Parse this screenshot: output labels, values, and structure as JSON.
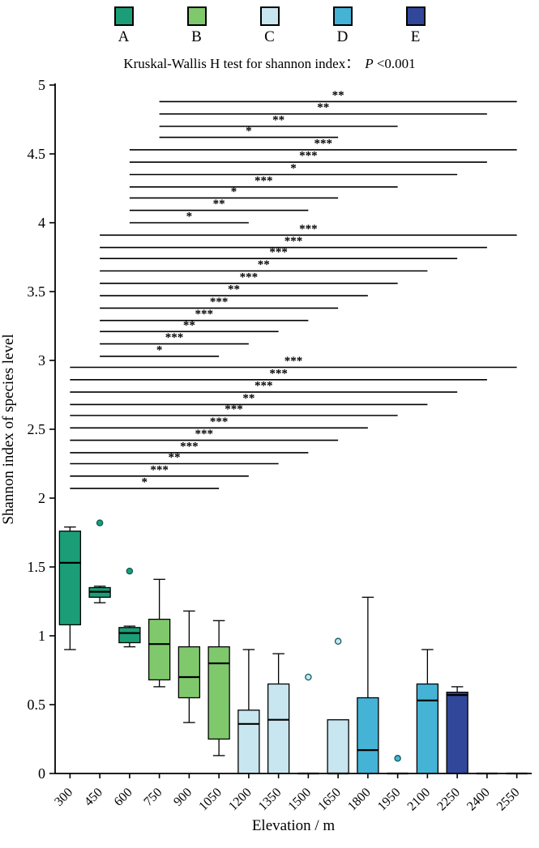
{
  "title": {
    "prefix": "Kruskal-Wallis H test for shannon index：",
    "italic": "P",
    "suffix": " <0.001"
  },
  "legend": {
    "position": "top",
    "items": [
      {
        "label": "A",
        "color": "#1b9e77"
      },
      {
        "label": "B",
        "color": "#7fc96c"
      },
      {
        "label": "C",
        "color": "#c7e6f0"
      },
      {
        "label": "D",
        "color": "#44b3d6"
      },
      {
        "label": "E",
        "color": "#31479a"
      }
    ]
  },
  "chart_data": {
    "type": "box",
    "title": "Kruskal-Wallis H test for shannon index： P <0.001",
    "xlabel": "Elevation / m",
    "ylabel": "Shannon index of species level",
    "ylim": [
      0,
      5
    ],
    "yticks": [
      "0",
      "0.5",
      "1",
      "1.5",
      "2",
      "2.5",
      "3",
      "3.5",
      "4",
      "4.5",
      "5"
    ],
    "grid": false,
    "categories": [
      "300",
      "450",
      "600",
      "750",
      "900",
      "1050",
      "1200",
      "1350",
      "1500",
      "1650",
      "1800",
      "1950",
      "2100",
      "2250",
      "2400",
      "2550"
    ],
    "boxes": [
      {
        "category": "300",
        "group": "A",
        "whisker_low": 0.9,
        "q1": 1.08,
        "median": 1.53,
        "q3": 1.76,
        "whisker_high": 1.79,
        "outliers": []
      },
      {
        "category": "450",
        "group": "A",
        "whisker_low": 1.24,
        "q1": 1.28,
        "median": 1.32,
        "q3": 1.35,
        "whisker_high": 1.36,
        "outliers": [
          1.82
        ]
      },
      {
        "category": "600",
        "group": "A",
        "whisker_low": 0.92,
        "q1": 0.95,
        "median": 1.02,
        "q3": 1.06,
        "whisker_high": 1.07,
        "outliers": [
          1.47
        ]
      },
      {
        "category": "750",
        "group": "B",
        "whisker_low": 0.63,
        "q1": 0.68,
        "median": 0.94,
        "q3": 1.12,
        "whisker_high": 1.41,
        "outliers": []
      },
      {
        "category": "900",
        "group": "B",
        "whisker_low": 0.37,
        "q1": 0.55,
        "median": 0.7,
        "q3": 0.92,
        "whisker_high": 1.18,
        "outliers": []
      },
      {
        "category": "1050",
        "group": "B",
        "whisker_low": 0.13,
        "q1": 0.25,
        "median": 0.8,
        "q3": 0.92,
        "whisker_high": 1.11,
        "outliers": []
      },
      {
        "category": "1200",
        "group": "C",
        "whisker_low": 0.0,
        "q1": 0.0,
        "median": 0.36,
        "q3": 0.46,
        "whisker_high": 0.9,
        "outliers": []
      },
      {
        "category": "1350",
        "group": "C",
        "whisker_low": 0.0,
        "q1": 0.0,
        "median": 0.39,
        "q3": 0.65,
        "whisker_high": 0.87,
        "outliers": []
      },
      {
        "category": "1500",
        "group": "C",
        "whisker_low": 0.0,
        "q1": 0.0,
        "median": 0.0,
        "q3": 0.0,
        "whisker_high": 0.0,
        "outliers": [
          0.7
        ]
      },
      {
        "category": "1650",
        "group": "C",
        "whisker_low": 0.0,
        "q1": 0.0,
        "median": 0.0,
        "q3": 0.39,
        "whisker_high": 0.39,
        "outliers": [
          0.96
        ]
      },
      {
        "category": "1800",
        "group": "D",
        "whisker_low": 0.0,
        "q1": 0.0,
        "median": 0.17,
        "q3": 0.55,
        "whisker_high": 1.28,
        "outliers": []
      },
      {
        "category": "1950",
        "group": "D",
        "whisker_low": 0.0,
        "q1": 0.0,
        "median": 0.0,
        "q3": 0.0,
        "whisker_high": 0.0,
        "outliers": [
          0.11
        ]
      },
      {
        "category": "2100",
        "group": "D",
        "whisker_low": 0.0,
        "q1": 0.0,
        "median": 0.53,
        "q3": 0.65,
        "whisker_high": 0.9,
        "outliers": []
      },
      {
        "category": "2250",
        "group": "E",
        "whisker_low": 0.0,
        "q1": 0.0,
        "median": 0.57,
        "q3": 0.59,
        "whisker_high": 0.63,
        "outliers": []
      },
      {
        "category": "2400",
        "group": "E",
        "whisker_low": 0.0,
        "q1": 0.0,
        "median": 0.0,
        "q3": 0.0,
        "whisker_high": 0.0,
        "outliers": []
      },
      {
        "category": "2550",
        "group": "E",
        "whisker_low": 0.0,
        "q1": 0.0,
        "median": 0.0,
        "q3": 0.0,
        "whisker_high": 0.0,
        "outliers": []
      }
    ],
    "significance_lines": [
      {
        "from": "300",
        "to": "1050",
        "y": 2.07,
        "stars": "*"
      },
      {
        "from": "300",
        "to": "1200",
        "y": 2.16,
        "stars": "***"
      },
      {
        "from": "300",
        "to": "1350",
        "y": 2.25,
        "stars": "**"
      },
      {
        "from": "300",
        "to": "1500",
        "y": 2.33,
        "stars": "***"
      },
      {
        "from": "300",
        "to": "1650",
        "y": 2.42,
        "stars": "***"
      },
      {
        "from": "300",
        "to": "1800",
        "y": 2.51,
        "stars": "***"
      },
      {
        "from": "300",
        "to": "1950",
        "y": 2.6,
        "stars": "***"
      },
      {
        "from": "300",
        "to": "2100",
        "y": 2.68,
        "stars": "**"
      },
      {
        "from": "300",
        "to": "2250",
        "y": 2.77,
        "stars": "***"
      },
      {
        "from": "300",
        "to": "2400",
        "y": 2.86,
        "stars": "***"
      },
      {
        "from": "300",
        "to": "2550",
        "y": 2.95,
        "stars": "***"
      },
      {
        "from": "450",
        "to": "1050",
        "y": 3.03,
        "stars": "*"
      },
      {
        "from": "450",
        "to": "1200",
        "y": 3.12,
        "stars": "***"
      },
      {
        "from": "450",
        "to": "1350",
        "y": 3.21,
        "stars": "**"
      },
      {
        "from": "450",
        "to": "1500",
        "y": 3.29,
        "stars": "***"
      },
      {
        "from": "450",
        "to": "1650",
        "y": 3.38,
        "stars": "***"
      },
      {
        "from": "450",
        "to": "1800",
        "y": 3.47,
        "stars": "**"
      },
      {
        "from": "450",
        "to": "1950",
        "y": 3.56,
        "stars": "***"
      },
      {
        "from": "450",
        "to": "2100",
        "y": 3.65,
        "stars": "**"
      },
      {
        "from": "450",
        "to": "2250",
        "y": 3.74,
        "stars": "***"
      },
      {
        "from": "450",
        "to": "2400",
        "y": 3.82,
        "stars": "***"
      },
      {
        "from": "450",
        "to": "2550",
        "y": 3.91,
        "stars": "***"
      },
      {
        "from": "600",
        "to": "1200",
        "y": 4.0,
        "stars": "*"
      },
      {
        "from": "600",
        "to": "1500",
        "y": 4.09,
        "stars": "**"
      },
      {
        "from": "600",
        "to": "1650",
        "y": 4.18,
        "stars": "*"
      },
      {
        "from": "600",
        "to": "1950",
        "y": 4.26,
        "stars": "***"
      },
      {
        "from": "600",
        "to": "2250",
        "y": 4.35,
        "stars": "*"
      },
      {
        "from": "600",
        "to": "2400",
        "y": 4.44,
        "stars": "***"
      },
      {
        "from": "600",
        "to": "2550",
        "y": 4.53,
        "stars": "***"
      },
      {
        "from": "750",
        "to": "1650",
        "y": 4.62,
        "stars": "*"
      },
      {
        "from": "750",
        "to": "1950",
        "y": 4.7,
        "stars": "**"
      },
      {
        "from": "750",
        "to": "2400",
        "y": 4.79,
        "stars": "**"
      },
      {
        "from": "750",
        "to": "2550",
        "y": 4.88,
        "stars": "**"
      }
    ]
  }
}
